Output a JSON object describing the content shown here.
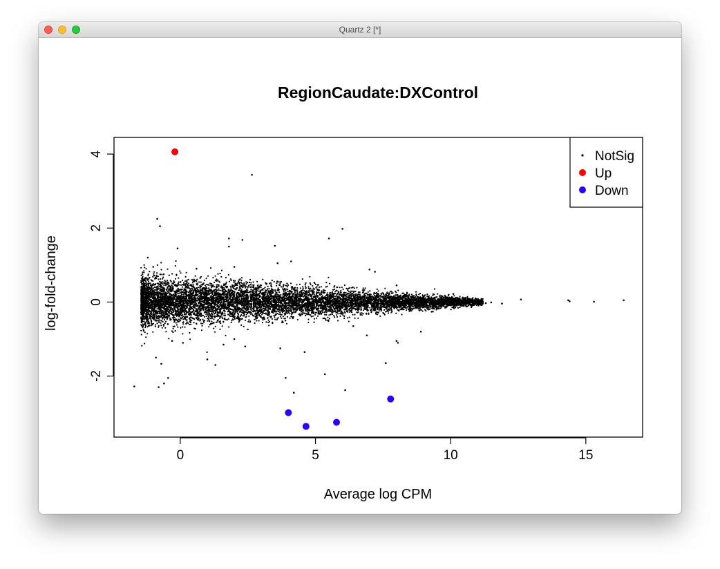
{
  "window": {
    "title": "Quartz 2 [*]"
  },
  "chart_data": {
    "type": "scatter",
    "title": "RegionCaudate:DXControl",
    "xlabel": "Average log CPM",
    "ylabel": "log-fold-change",
    "xlim": [
      -2.45,
      17.1
    ],
    "ylim": [
      -3.65,
      4.45
    ],
    "x_ticks": [
      0,
      5,
      10,
      15
    ],
    "y_ticks": [
      -2,
      0,
      2,
      4
    ],
    "grid": false,
    "legend_position": "top-right",
    "legend": [
      {
        "label": "NotSig",
        "color": "#000000",
        "marker": "small-dot"
      },
      {
        "label": "Up",
        "color": "#ff0000",
        "marker": "filled-circle"
      },
      {
        "label": "Down",
        "color": "#2a00ff",
        "marker": "filled-circle"
      }
    ],
    "series": [
      {
        "name": "Up",
        "color": "#ff0000",
        "points": [
          [
            -0.2,
            4.06
          ]
        ]
      },
      {
        "name": "Down",
        "color": "#2a00ff",
        "points": [
          [
            4.0,
            -2.99
          ],
          [
            4.65,
            -3.36
          ],
          [
            5.78,
            -3.25
          ],
          [
            7.78,
            -2.62
          ]
        ]
      },
      {
        "name": "NotSig",
        "color": "#000000",
        "cloud": {
          "n": 9000,
          "x_min": -1.45,
          "x_max": 11.2,
          "spread_at_min": 0.34,
          "spread_at_max": 0.04
        },
        "points": [
          [
            2.65,
            3.44
          ],
          [
            -0.85,
            2.25
          ],
          [
            -0.75,
            2.05
          ],
          [
            6.0,
            1.98
          ],
          [
            5.5,
            1.72
          ],
          [
            1.8,
            1.72
          ],
          [
            2.3,
            1.68
          ],
          [
            3.5,
            1.52
          ],
          [
            -0.1,
            1.45
          ],
          [
            1.8,
            1.5
          ],
          [
            3.6,
            1.05
          ],
          [
            4.1,
            1.1
          ],
          [
            7.0,
            0.88
          ],
          [
            7.2,
            0.82
          ],
          [
            -1.2,
            1.2
          ],
          [
            -1.7,
            -2.28
          ],
          [
            -0.8,
            -2.3
          ],
          [
            -0.6,
            -2.2
          ],
          [
            -0.45,
            -2.05
          ],
          [
            -0.9,
            -1.5
          ],
          [
            -0.7,
            -1.67
          ],
          [
            1.3,
            -1.7
          ],
          [
            1.0,
            -1.55
          ],
          [
            3.9,
            -2.05
          ],
          [
            4.2,
            -2.45
          ],
          [
            5.35,
            -1.95
          ],
          [
            6.1,
            -2.38
          ],
          [
            7.6,
            -1.65
          ],
          [
            8.0,
            -1.05
          ],
          [
            8.05,
            -1.1
          ],
          [
            8.9,
            -0.8
          ],
          [
            4.6,
            -1.35
          ],
          [
            3.7,
            -1.25
          ],
          [
            6.9,
            -0.9
          ],
          [
            12.6,
            0.07
          ],
          [
            14.35,
            0.05
          ],
          [
            14.4,
            0.02
          ],
          [
            15.3,
            0.01
          ],
          [
            16.4,
            0.05
          ],
          [
            11.9,
            -0.04
          ],
          [
            11.5,
            -0.01
          ],
          [
            11.3,
            -0.03
          ],
          [
            10.9,
            0.04
          ],
          [
            10.7,
            0.03
          ],
          [
            9.7,
            0.15
          ],
          [
            10.1,
            0.22
          ],
          [
            8.0,
            0.45
          ],
          [
            5.8,
            0.4
          ],
          [
            2.0,
            0.95
          ],
          [
            0.6,
            0.9
          ],
          [
            -1.0,
            0.95
          ],
          [
            -0.3,
            -1.05
          ],
          [
            0.1,
            -1.1
          ],
          [
            1.6,
            -1.15
          ],
          [
            2.0,
            -1.0
          ],
          [
            2.4,
            -1.2
          ],
          [
            6.4,
            -0.65
          ],
          [
            10.6,
            -0.12
          ],
          [
            9.3,
            -0.26
          ]
        ]
      }
    ]
  }
}
